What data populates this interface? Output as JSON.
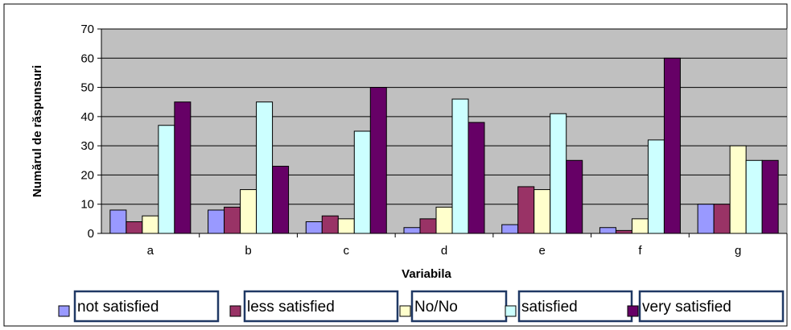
{
  "chart_data": {
    "type": "bar",
    "title": "",
    "xlabel": "Variabila",
    "ylabel": "Numărul de răspunsuri",
    "ylim": [
      0,
      70
    ],
    "yticks": [
      0,
      10,
      20,
      30,
      40,
      50,
      60,
      70
    ],
    "grid": true,
    "legend_position": "bottom",
    "categories": [
      "a",
      "b",
      "c",
      "d",
      "e",
      "f",
      "g"
    ],
    "series": [
      {
        "name": "not satisfied",
        "color": "#9999ff",
        "values": [
          8,
          8,
          4,
          2,
          3,
          2,
          10
        ]
      },
      {
        "name": "less satisfied",
        "color": "#993366",
        "values": [
          4,
          9,
          6,
          5,
          16,
          1,
          10
        ]
      },
      {
        "name": "No/No",
        "color": "#ffffcc",
        "values": [
          6,
          15,
          5,
          9,
          15,
          5,
          30
        ]
      },
      {
        "name": "satisfied",
        "color": "#ccffff",
        "values": [
          37,
          45,
          35,
          46,
          41,
          32,
          25
        ]
      },
      {
        "name": "very satisfied",
        "color": "#660066",
        "values": [
          45,
          23,
          50,
          38,
          25,
          60,
          25
        ]
      }
    ],
    "plot_background": "#c0c0c0",
    "legend_box_border": "#1f3864"
  }
}
